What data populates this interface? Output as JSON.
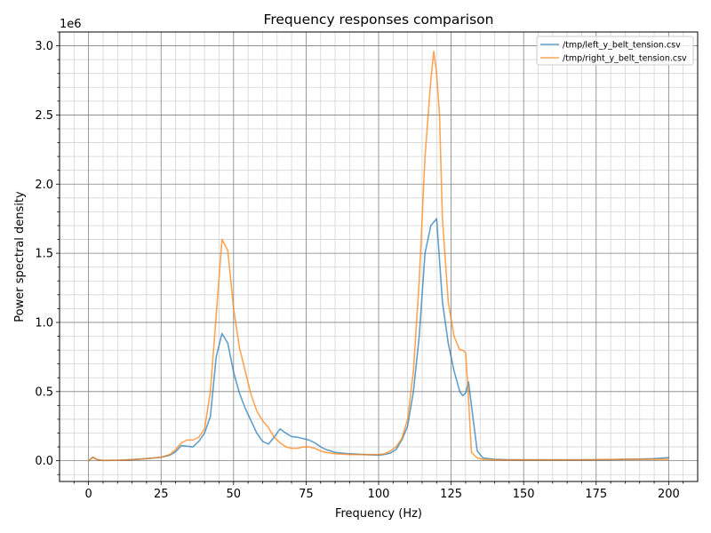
{
  "chart_data": {
    "type": "line",
    "title": "Frequency responses comparison",
    "xlabel": "Frequency (Hz)",
    "ylabel": "Power spectral density",
    "y_offset_label": "1e6",
    "xlim": [
      -10,
      210
    ],
    "ylim": [
      -150000,
      3100000
    ],
    "xticks": [
      0,
      25,
      50,
      75,
      100,
      125,
      150,
      175,
      200
    ],
    "xtick_labels": [
      "0",
      "25",
      "50",
      "75",
      "100",
      "125",
      "150",
      "175",
      "200"
    ],
    "yticks": [
      0,
      500000,
      1000000,
      1500000,
      2000000,
      2500000,
      3000000
    ],
    "ytick_labels": [
      "0.0",
      "0.5",
      "1.0",
      "1.5",
      "2.0",
      "2.5",
      "3.0"
    ],
    "grid": true,
    "minor_grid": true,
    "legend_position": "upper right",
    "series": [
      {
        "name": "/tmp/left_y_belt_tension.csv",
        "color": "#1f77b4",
        "x": [
          0,
          1.5,
          3,
          5,
          10,
          15,
          20,
          25,
          28,
          30,
          32,
          34,
          36,
          38,
          40,
          42,
          44,
          46,
          48,
          50,
          52,
          54,
          56,
          58,
          60,
          62,
          64,
          66,
          68,
          70,
          72,
          74,
          76,
          78,
          80,
          82,
          85,
          90,
          95,
          100,
          102,
          104,
          106,
          108,
          110,
          112,
          114,
          116,
          118,
          120,
          121,
          122,
          124,
          126,
          128,
          129,
          130,
          131,
          132,
          134,
          136,
          140,
          145,
          150,
          155,
          160,
          165,
          170,
          175,
          180,
          185,
          190,
          195,
          198,
          200
        ],
        "y": [
          0,
          25000,
          8000,
          2000,
          3000,
          8000,
          15000,
          25000,
          40000,
          65000,
          110000,
          105000,
          100000,
          140000,
          200000,
          320000,
          750000,
          920000,
          850000,
          640000,
          490000,
          380000,
          290000,
          200000,
          140000,
          120000,
          170000,
          230000,
          200000,
          175000,
          170000,
          160000,
          150000,
          130000,
          100000,
          80000,
          60000,
          50000,
          45000,
          40000,
          45000,
          55000,
          80000,
          150000,
          250000,
          500000,
          900000,
          1500000,
          1700000,
          1750000,
          1450000,
          1150000,
          850000,
          650000,
          500000,
          470000,
          490000,
          570000,
          400000,
          70000,
          20000,
          10000,
          7000,
          6000,
          6000,
          6000,
          6000,
          6000,
          7000,
          8000,
          10000,
          12000,
          15000,
          20000,
          22000
        ]
      },
      {
        "name": "/tmp/right_y_belt_tension.csv",
        "color": "#ff7f0e",
        "x": [
          0,
          1.5,
          3,
          5,
          10,
          15,
          20,
          25,
          28,
          30,
          32,
          34,
          36,
          38,
          40,
          42,
          44,
          46,
          48,
          50,
          52,
          54,
          56,
          58,
          60,
          62,
          64,
          66,
          68,
          70,
          72,
          74,
          76,
          78,
          80,
          82,
          85,
          90,
          95,
          100,
          102,
          104,
          106,
          108,
          110,
          112,
          114,
          116,
          118,
          119,
          120,
          121,
          122,
          124,
          126,
          128,
          129,
          130,
          131,
          132,
          134,
          136,
          140,
          145,
          150,
          155,
          160,
          165,
          170,
          175,
          180,
          185,
          190,
          195,
          198,
          200
        ],
        "y": [
          0,
          25000,
          8000,
          2000,
          3000,
          8000,
          15000,
          25000,
          45000,
          80000,
          130000,
          150000,
          150000,
          170000,
          230000,
          500000,
          1050000,
          1600000,
          1520000,
          1100000,
          820000,
          650000,
          480000,
          360000,
          290000,
          240000,
          170000,
          130000,
          100000,
          90000,
          90000,
          100000,
          100000,
          90000,
          70000,
          60000,
          50000,
          45000,
          45000,
          45000,
          50000,
          70000,
          100000,
          160000,
          300000,
          650000,
          1300000,
          2200000,
          2750000,
          2960000,
          2800000,
          2500000,
          1750000,
          1150000,
          900000,
          800000,
          800000,
          780000,
          450000,
          60000,
          20000,
          10000,
          7000,
          6000,
          6000,
          6000,
          6000,
          6000,
          7000,
          8000,
          9000,
          10000,
          10000,
          10000,
          10000,
          10000
        ]
      }
    ]
  }
}
